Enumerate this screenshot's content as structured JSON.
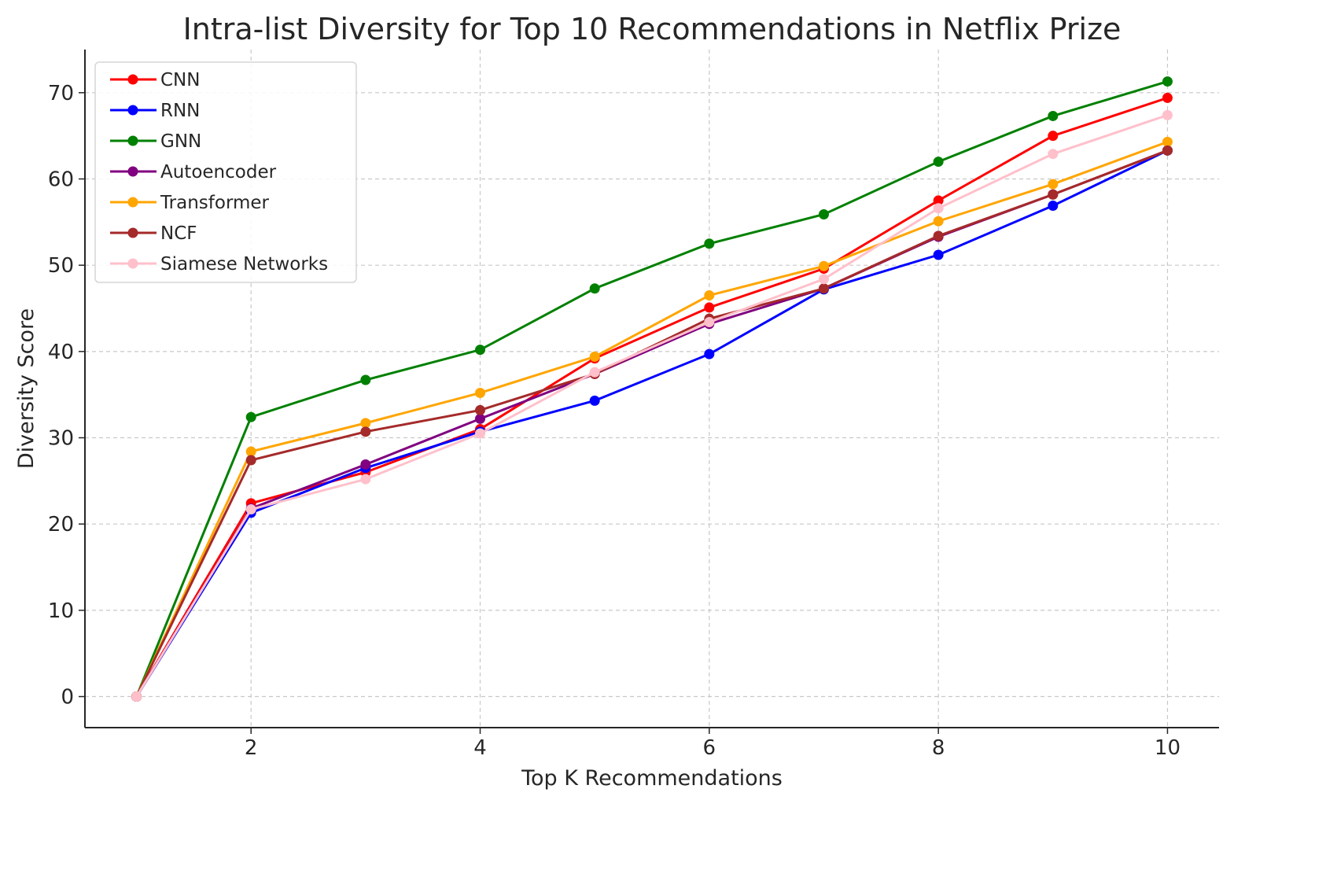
{
  "chart_data": {
    "type": "line",
    "title": "Intra-list Diversity for Top 10 Recommendations in Netflix Prize",
    "xlabel": "Top K Recommendations",
    "ylabel": "Diversity Score",
    "x": [
      1,
      2,
      3,
      4,
      5,
      6,
      7,
      8,
      9,
      10
    ],
    "xlim": [
      0.55,
      10.45
    ],
    "ylim": [
      -3.6,
      75
    ],
    "xticks": [
      2,
      4,
      6,
      8,
      10
    ],
    "yticks": [
      0,
      10,
      20,
      30,
      40,
      50,
      60,
      70
    ],
    "grid": true,
    "legend_position": "top-left",
    "series": [
      {
        "name": "CNN",
        "color": "#ff0000",
        "values": [
          0,
          22.4,
          26.0,
          31.0,
          39.2,
          45.1,
          49.6,
          57.5,
          65.0,
          69.4
        ]
      },
      {
        "name": "RNN",
        "color": "#0000ff",
        "values": [
          0,
          21.3,
          26.5,
          30.7,
          34.3,
          39.7,
          47.2,
          51.2,
          56.9,
          63.3
        ]
      },
      {
        "name": "GNN",
        "color": "#008000",
        "values": [
          0,
          32.4,
          36.7,
          40.2,
          47.3,
          52.5,
          55.9,
          62.0,
          67.3,
          71.3
        ]
      },
      {
        "name": "Autoencoder",
        "color": "#800080",
        "values": [
          0,
          21.8,
          26.9,
          32.2,
          37.4,
          43.2,
          47.3,
          53.3,
          58.2,
          63.3
        ]
      },
      {
        "name": "Transformer",
        "color": "#ffa500",
        "values": [
          0,
          28.4,
          31.7,
          35.2,
          39.4,
          46.5,
          49.9,
          55.1,
          59.4,
          64.3
        ]
      },
      {
        "name": "NCF",
        "color": "#a52a2a",
        "values": [
          0,
          27.4,
          30.7,
          33.2,
          37.4,
          43.8,
          47.3,
          53.4,
          58.2,
          63.3
        ]
      },
      {
        "name": "Siamese Networks",
        "color": "#ffc0cb",
        "values": [
          0,
          21.7,
          25.2,
          30.5,
          37.6,
          43.4,
          48.4,
          56.6,
          62.9,
          67.4
        ]
      }
    ]
  }
}
